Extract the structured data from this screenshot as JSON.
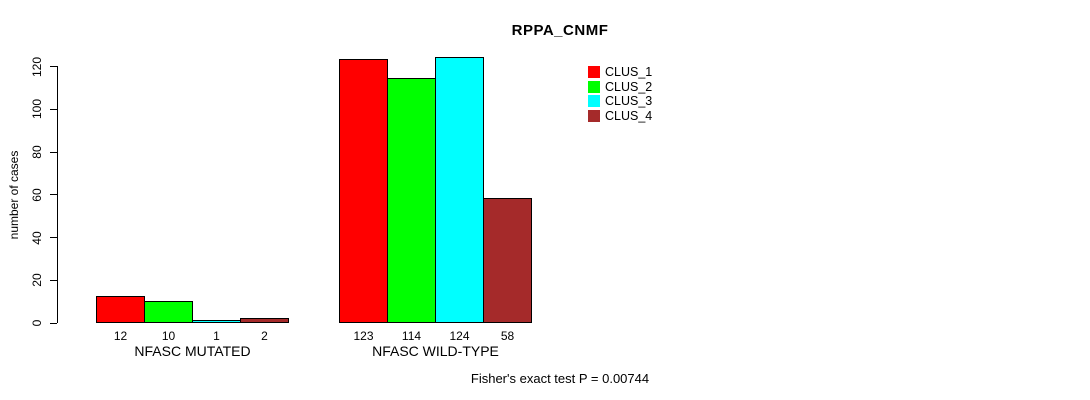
{
  "chart_data": {
    "type": "bar",
    "title": "RPPA_CNMF",
    "ylabel": "number of cases",
    "xlabel": "",
    "yticks": [
      0,
      20,
      40,
      60,
      80,
      100,
      120
    ],
    "ylim": [
      0,
      124
    ],
    "grid": false,
    "legend_position": "top-right",
    "categories": [
      "NFASC MUTATED",
      "NFASC WILD-TYPE"
    ],
    "series": [
      {
        "name": "CLUS_1",
        "color": "#ff0000",
        "values": [
          12,
          123
        ]
      },
      {
        "name": "CLUS_2",
        "color": "#00ff00",
        "values": [
          10,
          114
        ]
      },
      {
        "name": "CLUS_3",
        "color": "#00ffff",
        "values": [
          1,
          124
        ]
      },
      {
        "name": "CLUS_4",
        "color": "#a52a2a",
        "values": [
          2,
          58
        ]
      }
    ],
    "bar_value_labels": [
      [
        12,
        10,
        1,
        2
      ],
      [
        123,
        114,
        124,
        58
      ]
    ],
    "footnote": "Fisher's exact test P = 0.00744"
  }
}
